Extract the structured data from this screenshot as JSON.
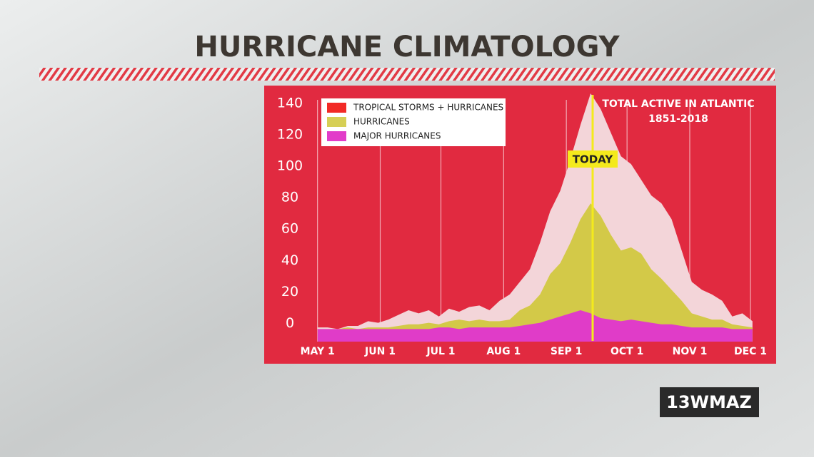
{
  "chart_data": {
    "type": "area",
    "title": "HURRICANE CLIMATOLOGY",
    "subtitle": [
      "TOTAL ACTIVE IN ATLANTIC",
      "1851-2018"
    ],
    "x": [
      0,
      5,
      10,
      15,
      20,
      25,
      30,
      35,
      40,
      45,
      50,
      55,
      60,
      65,
      70,
      75,
      80,
      85,
      90,
      95,
      100,
      105,
      110,
      115,
      120,
      125,
      130,
      135,
      140,
      145,
      150,
      155,
      160,
      165,
      170,
      175,
      180,
      185,
      190,
      195,
      200,
      205,
      210,
      215
    ],
    "xlim": [
      -2,
      220
    ],
    "xticks": [
      {
        "value": 0,
        "label": "MAY 1"
      },
      {
        "value": 31,
        "label": "JUN 1"
      },
      {
        "value": 61,
        "label": "JUL 1"
      },
      {
        "value": 92,
        "label": "AUG 1"
      },
      {
        "value": 123,
        "label": "SEP 1"
      },
      {
        "value": 153,
        "label": "OCT 1"
      },
      {
        "value": 184,
        "label": "NOV 1"
      },
      {
        "value": 214,
        "label": "DEC 1"
      }
    ],
    "ylim": [
      -8,
      150
    ],
    "yticks": [
      0,
      20,
      40,
      60,
      80,
      100,
      120,
      140
    ],
    "grid": "x",
    "legend": "top-left",
    "series": [
      {
        "name": "TROPICAL STORMS + HURRICANES",
        "color": "#f22a26",
        "fill": "#f3d5d9",
        "values": [
          1,
          1,
          0,
          2,
          2,
          5,
          4,
          6,
          9,
          12,
          10,
          12,
          8,
          13,
          11,
          14,
          15,
          12,
          18,
          22,
          30,
          38,
          55,
          75,
          88,
          108,
          130,
          150,
          140,
          125,
          110,
          105,
          95,
          85,
          80,
          70,
          50,
          30,
          25,
          22,
          18,
          8,
          10,
          5
        ]
      },
      {
        "name": "HURRICANES",
        "color": "#d6cf55",
        "fill": "#d3c948",
        "values": [
          0,
          0,
          0,
          1,
          0,
          1,
          1,
          1,
          2,
          3,
          3,
          4,
          3,
          5,
          6,
          5,
          6,
          5,
          5,
          6,
          12,
          15,
          22,
          35,
          42,
          55,
          70,
          80,
          72,
          60,
          50,
          52,
          48,
          38,
          32,
          25,
          18,
          10,
          8,
          6,
          6,
          3,
          2,
          1
        ]
      },
      {
        "name": "MAJOR HURRICANES",
        "color": "#e23cc9",
        "fill": "#e03cc8",
        "values": [
          0,
          0,
          0,
          0,
          0,
          0,
          0,
          0,
          0,
          0,
          0,
          0,
          1,
          1,
          0,
          1,
          1,
          1,
          1,
          1,
          2,
          3,
          4,
          6,
          8,
          10,
          12,
          10,
          7,
          6,
          5,
          6,
          5,
          4,
          3,
          3,
          2,
          1,
          1,
          1,
          1,
          0,
          0,
          0
        ]
      }
    ],
    "annotations": [
      {
        "text": "TODAY",
        "x": 136
      }
    ]
  },
  "logo": "13WMAZ"
}
